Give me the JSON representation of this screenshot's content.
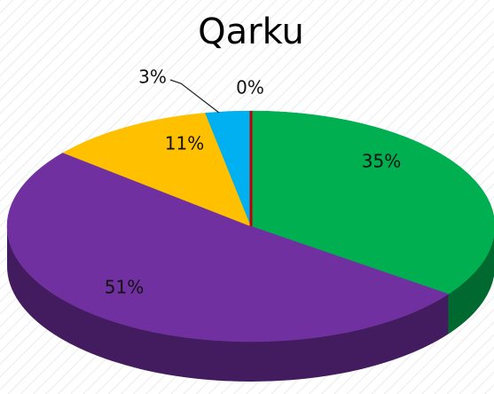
{
  "chart_data": {
    "type": "pie",
    "title": "Qarku",
    "values": [
      35,
      51,
      11,
      3,
      0
    ],
    "value_labels": [
      "35%",
      "51%",
      "11%",
      "3%",
      "0%"
    ],
    "colors": [
      "#00b050",
      "#7030a0",
      "#ffc000",
      "#00b0f0",
      "#c00000"
    ],
    "three_d": true
  }
}
